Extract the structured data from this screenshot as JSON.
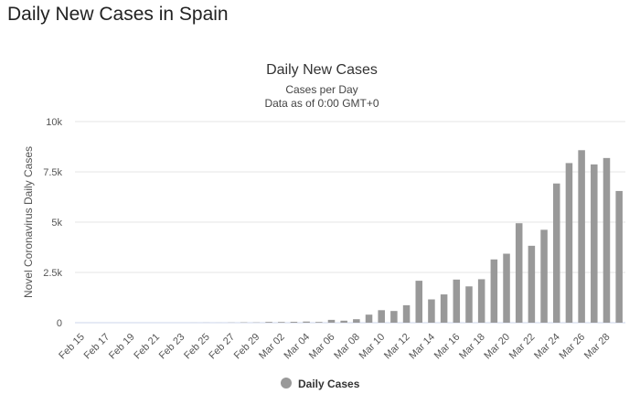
{
  "page": {
    "title": "Daily New Cases in Spain"
  },
  "chart_data": {
    "type": "bar",
    "title": "Daily New Cases",
    "subtitle": "Cases per Day",
    "subtitle2": "Data as of 0:00 GMT+0",
    "ylabel": "Novel Coronavirus Daily Cases",
    "ylim": [
      0,
      10000
    ],
    "yticks": [
      0,
      2500,
      5000,
      7500,
      10000
    ],
    "ytick_labels": [
      "0",
      "2.5k",
      "5k",
      "7.5k",
      "10k"
    ],
    "grid": true,
    "legend": "bottom-center",
    "bar_color": "#999999",
    "categories": [
      "Feb 15",
      "Feb 16",
      "Feb 17",
      "Feb 18",
      "Feb 19",
      "Feb 20",
      "Feb 21",
      "Feb 22",
      "Feb 23",
      "Feb 24",
      "Feb 25",
      "Feb 26",
      "Feb 27",
      "Feb 28",
      "Feb 29",
      "Mar 01",
      "Mar 02",
      "Mar 03",
      "Mar 04",
      "Mar 05",
      "Mar 06",
      "Mar 07",
      "Mar 08",
      "Mar 09",
      "Mar 10",
      "Mar 11",
      "Mar 12",
      "Mar 13",
      "Mar 14",
      "Mar 15",
      "Mar 16",
      "Mar 17",
      "Mar 18",
      "Mar 19",
      "Mar 20",
      "Mar 21",
      "Mar 22",
      "Mar 23",
      "Mar 24",
      "Mar 25",
      "Mar 26",
      "Mar 27",
      "Mar 28",
      "Mar 29"
    ],
    "x_tick_labels": [
      "Feb 15",
      "Feb 17",
      "Feb 19",
      "Feb 21",
      "Feb 23",
      "Feb 25",
      "Feb 27",
      "Feb 29",
      "Mar 02",
      "Mar 04",
      "Mar 06",
      "Mar 08",
      "Mar 10",
      "Mar 12",
      "Mar 14",
      "Mar 16",
      "Mar 18",
      "Mar 20",
      "Mar 22",
      "Mar 24",
      "Mar 26",
      "Mar 28"
    ],
    "series": [
      {
        "name": "Daily Cases",
        "values": [
          0,
          0,
          0,
          0,
          0,
          0,
          0,
          0,
          0,
          2,
          4,
          2,
          8,
          17,
          13,
          39,
          36,
          45,
          57,
          37,
          141,
          100,
          173,
          400,
          622,
          582,
          869,
          2086,
          1159,
          1407,
          2144,
          1806,
          2162,
          3146,
          3431,
          4946,
          3825,
          4620,
          6922,
          7937,
          8578,
          7871,
          8189,
          6549
        ]
      }
    ]
  }
}
